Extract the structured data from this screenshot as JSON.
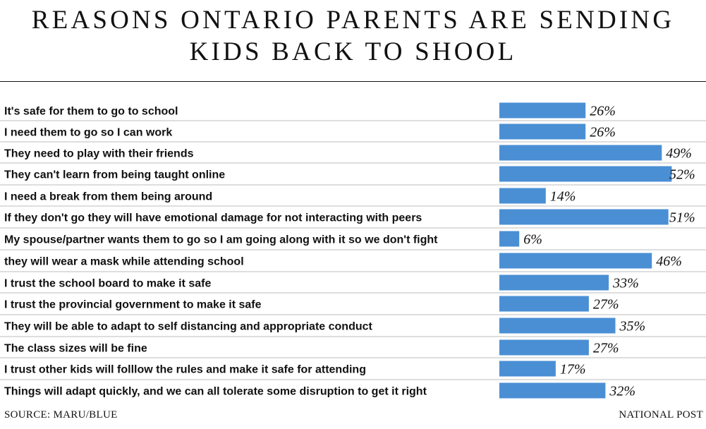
{
  "chart_data": {
    "type": "bar",
    "orientation": "horizontal",
    "title": "REASONS ONTARIO PARENTS ARE SENDING KIDS BACK TO SHOOL",
    "categories": [
      "It's safe for them to go to school",
      "I need them to go so I can work",
      "They need to play with their friends",
      "They can't learn from being taught online",
      "I need a break from them being around",
      "If they don't go they will have emotional damage for not interacting with peers",
      "My spouse/partner wants them to go so I am going along with it so we don't fight",
      "they will wear a mask while attending school",
      "I trust the school board to make it safe",
      "I trust the provincial government to make it safe",
      "They will be able to adapt to self distancing and appropriate conduct",
      "The class sizes will be fine",
      "I trust other kids will folllow the rules and make it safe for attending",
      "Things will adapt quickly, and we can all tolerate some disruption to get it right"
    ],
    "values": [
      26,
      26,
      49,
      52,
      14,
      51,
      6,
      46,
      33,
      27,
      35,
      27,
      17,
      32
    ],
    "value_labels": [
      "26%",
      "26%",
      "49%",
      "52%",
      "14%",
      "51%",
      "6%",
      "46%",
      "33%",
      "27%",
      "35%",
      "27%",
      "17%",
      "32%"
    ],
    "bar_color": "#4a8fd4"
  },
  "footer": {
    "source": "SOURCE: MARU/BLUE",
    "brand": "NATIONAL POST"
  }
}
